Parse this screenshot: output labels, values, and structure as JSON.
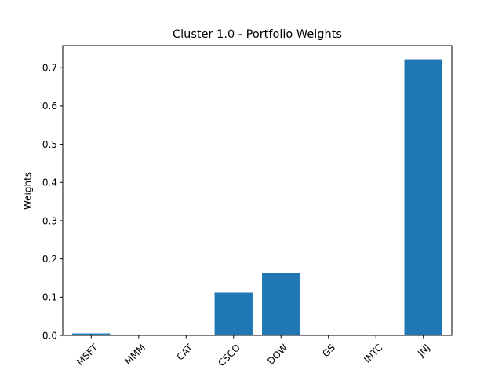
{
  "chart_data": {
    "type": "bar",
    "title": "Cluster 1.0 - Portfolio Weights",
    "xlabel": "",
    "ylabel": "Weights",
    "categories": [
      "MSFT",
      "MMM",
      "CAT",
      "CSCO",
      "DOW",
      "GS",
      "INTC",
      "JNJ"
    ],
    "values": [
      0.005,
      0.0,
      0.0,
      0.112,
      0.163,
      0.0,
      0.0,
      0.722
    ],
    "ylim": [
      0,
      0.758
    ],
    "yticks": [
      0.0,
      0.1,
      0.2,
      0.3,
      0.4,
      0.5,
      0.6,
      0.7
    ],
    "ytick_labels": [
      "0.0",
      "0.1",
      "0.2",
      "0.3",
      "0.4",
      "0.5",
      "0.6",
      "0.7"
    ],
    "bar_color": "#1f77b4",
    "grid": false,
    "legend": false
  }
}
